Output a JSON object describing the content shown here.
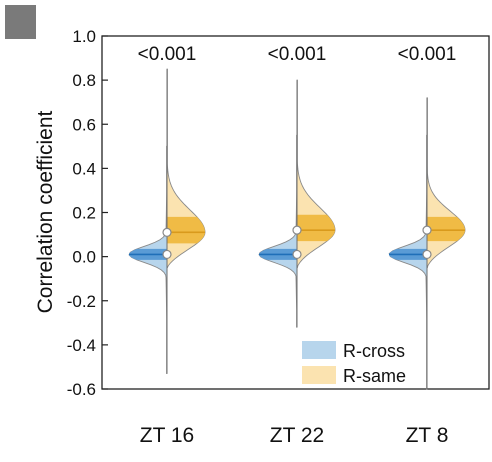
{
  "chart_data": {
    "type": "violin",
    "title": "",
    "xlabel": "",
    "ylabel": "Correlation coefficient",
    "ylim": [
      -0.6,
      1.0
    ],
    "yticks": [
      "1.0",
      "0.8",
      "0.6",
      "0.4",
      "0.2",
      "0.0",
      "-0.2",
      "-0.4",
      "-0.6"
    ],
    "categories": [
      "ZT 16",
      "ZT 22",
      "ZT 8"
    ],
    "annotations": [
      "<0.001",
      "<0.001",
      "<0.001"
    ],
    "grid": false,
    "legend_position": "bottom-right",
    "series": [
      {
        "name": "R-cross",
        "side": "left",
        "color": "#b7d5ec",
        "quartile_color": "#5a9bd5",
        "median_color": "#1f6fb8",
        "median": [
          0.01,
          0.01,
          0.01
        ],
        "q1": [
          -0.015,
          -0.015,
          -0.015
        ],
        "q3": [
          0.035,
          0.035,
          0.035
        ],
        "min": [
          -0.53,
          -0.32,
          -0.6
        ],
        "max": [
          0.5,
          0.55,
          0.55
        ]
      },
      {
        "name": "R-same",
        "side": "right",
        "color": "#fbe3b0",
        "quartile_color": "#f0bb45",
        "median_color": "#d99a1c",
        "median": [
          0.11,
          0.12,
          0.12
        ],
        "q1": [
          0.06,
          0.07,
          0.07
        ],
        "q3": [
          0.18,
          0.19,
          0.18
        ],
        "min": [
          -0.05,
          -0.05,
          -0.05
        ],
        "max": [
          0.85,
          0.8,
          0.72
        ]
      }
    ]
  },
  "panel": {
    "marker_color": "#7a7a7a"
  }
}
